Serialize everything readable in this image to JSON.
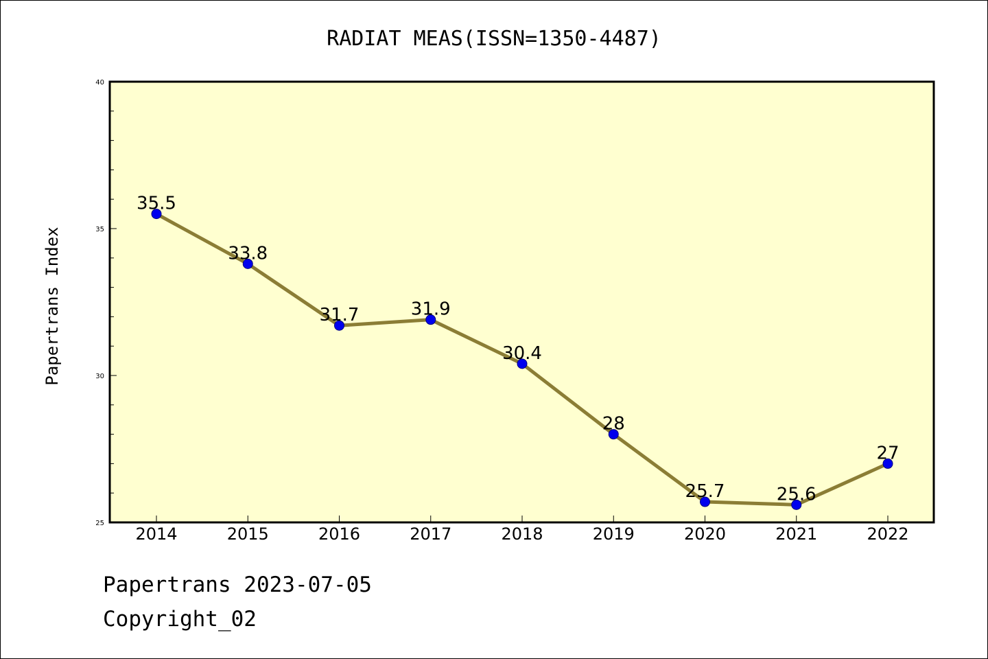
{
  "chart_data": {
    "type": "line",
    "title": "RADIAT MEAS(ISSN=1350-4487)",
    "xlabel": "",
    "ylabel": "Papertrans Index",
    "categories": [
      "2014",
      "2015",
      "2016",
      "2017",
      "2018",
      "2019",
      "2020",
      "2021",
      "2022"
    ],
    "series": [
      {
        "values": [
          35.5,
          33.8,
          31.7,
          31.9,
          30.4,
          28,
          25.7,
          25.6,
          27
        ],
        "labels": [
          "35.5",
          "33.8",
          "31.7",
          "31.9",
          "30.4",
          "28",
          "25.7",
          "25.6",
          "27"
        ]
      }
    ],
    "ylim": [
      25,
      40
    ],
    "yticks": [
      "25",
      "30",
      "35",
      "40"
    ],
    "grid": false,
    "legend": "none"
  },
  "colors": {
    "plot_background": "#ffffd0",
    "line": "#8b7d35",
    "marker": "#0000ee"
  },
  "footer": {
    "date_line": "Papertrans 2023-07-05",
    "copyright": "Copyright_02"
  }
}
